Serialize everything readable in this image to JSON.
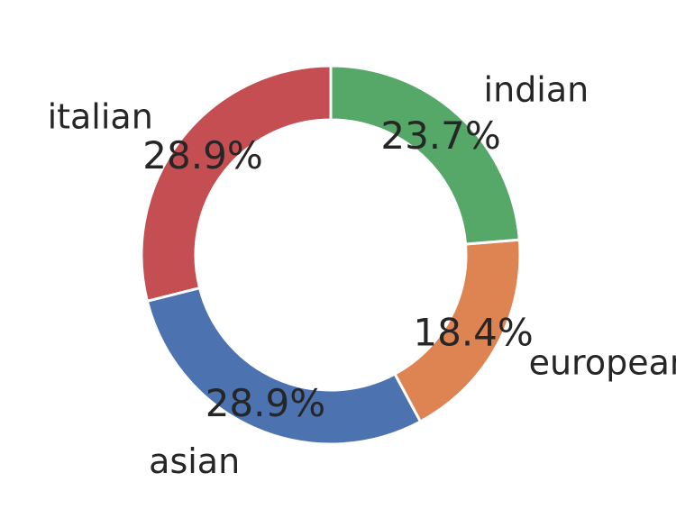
{
  "chart_data": {
    "type": "pie",
    "title": "",
    "categories": [
      "italian",
      "asian",
      "european",
      "indian"
    ],
    "values": [
      28.9,
      28.9,
      18.4,
      23.7
    ],
    "labels": [
      "28.9%",
      "28.9%",
      "18.4%",
      "23.7%"
    ],
    "colors": [
      "#c44e52",
      "#4c72b0",
      "#dd8452",
      "#55a868"
    ],
    "donut": true,
    "start_angle_deg": 90,
    "direction": "counterclockwise"
  }
}
